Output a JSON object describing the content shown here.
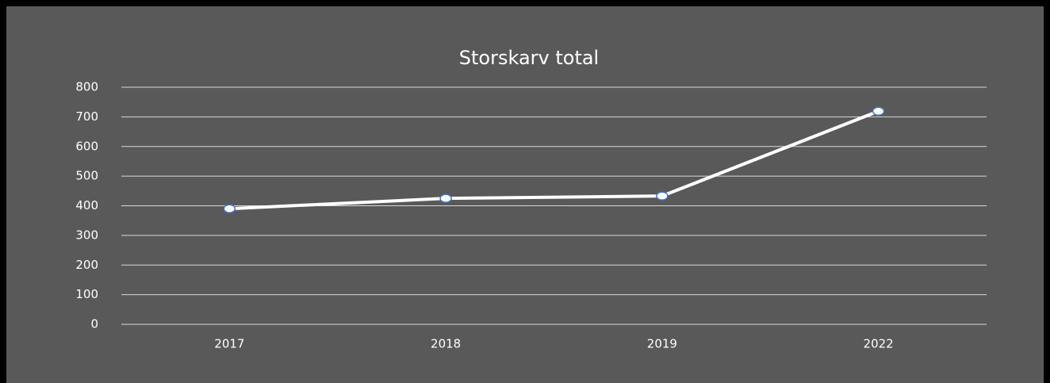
{
  "chart_data": {
    "type": "line",
    "title": "Storskarv total",
    "categories": [
      "2017",
      "2018",
      "2019",
      "2022"
    ],
    "series": [
      {
        "name": null,
        "color": "#ffffff",
        "values": [
          390,
          425,
          433,
          719
        ]
      }
    ],
    "ylim": [
      0,
      800
    ],
    "yticks": [
      0,
      100,
      200,
      300,
      400,
      500,
      600,
      700,
      800
    ],
    "grid": true
  }
}
